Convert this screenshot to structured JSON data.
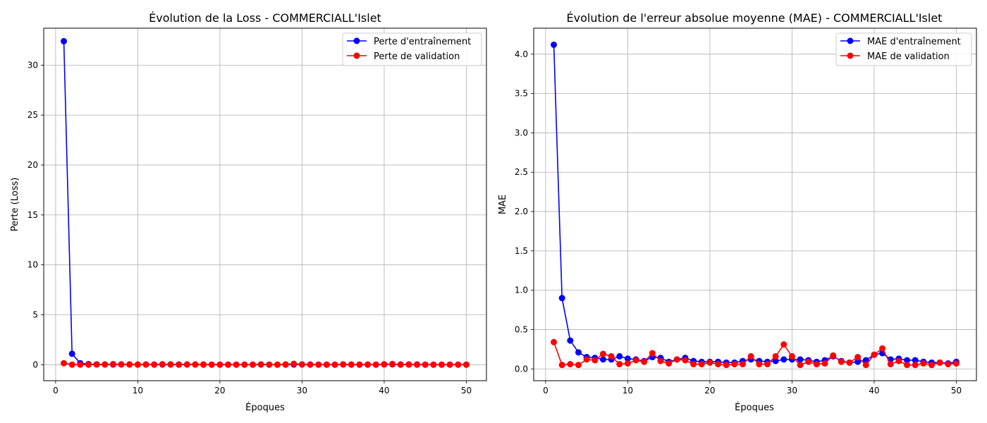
{
  "chart_data": [
    {
      "type": "line",
      "title": "Évolution de la Loss - COMMERCIALL'Islet",
      "xlabel": "Époques",
      "ylabel": "Perte (Loss)",
      "xlim": [
        -1.45,
        52.45
      ],
      "ylim": [
        -1.6,
        33.7
      ],
      "xticks": [
        0,
        10,
        20,
        30,
        40,
        50
      ],
      "yticks": [
        0,
        5,
        10,
        15,
        20,
        25,
        30
      ],
      "grid": true,
      "legend": "upper right",
      "x": [
        1,
        2,
        3,
        4,
        5,
        6,
        7,
        8,
        9,
        10,
        11,
        12,
        13,
        14,
        15,
        16,
        17,
        18,
        19,
        20,
        21,
        22,
        23,
        24,
        25,
        26,
        27,
        28,
        29,
        30,
        31,
        32,
        33,
        34,
        35,
        36,
        37,
        38,
        39,
        40,
        41,
        42,
        43,
        44,
        45,
        46,
        47,
        48,
        49,
        50
      ],
      "series": [
        {
          "name": "Perte d'entraînement",
          "color": "#0000ff",
          "values": [
            32.4,
            1.1,
            0.15,
            0.06,
            0.04,
            0.03,
            0.02,
            0.03,
            0.03,
            0.02,
            0.02,
            0.02,
            0.02,
            0.03,
            0.02,
            0.02,
            0.02,
            0.02,
            0.01,
            0.01,
            0.01,
            0.01,
            0.01,
            0.01,
            0.02,
            0.01,
            0.01,
            0.01,
            0.02,
            0.02,
            0.02,
            0.01,
            0.01,
            0.01,
            0.03,
            0.02,
            0.01,
            0.01,
            0.01,
            0.04,
            0.04,
            0.02,
            0.02,
            0.02,
            0.01,
            0.01,
            0.01,
            0.01,
            0.01,
            0.01
          ]
        },
        {
          "name": "Perte de validation",
          "color": "#ff0000",
          "values": [
            0.15,
            0.01,
            0.01,
            0.01,
            0.02,
            0.02,
            0.06,
            0.03,
            0.02,
            0.01,
            0.02,
            0.01,
            0.05,
            0.02,
            0.01,
            0.02,
            0.02,
            0.01,
            0.01,
            0.01,
            0.01,
            0.01,
            0.01,
            0.01,
            0.03,
            0.01,
            0.01,
            0.03,
            0.09,
            0.03,
            0.01,
            0.01,
            0.01,
            0.01,
            0.03,
            0.01,
            0.01,
            0.02,
            0.01,
            0.03,
            0.07,
            0.01,
            0.02,
            0.01,
            0.01,
            0.01,
            0.01,
            0.01,
            0.01,
            0.01
          ]
        }
      ]
    },
    {
      "type": "line",
      "title": "Évolution de l'erreur absolue moyenne (MAE) - COMMERCIALL'Islet",
      "xlabel": "Époques",
      "ylabel": "MAE",
      "xlim": [
        -1.45,
        52.45
      ],
      "ylim": [
        -0.15,
        4.33
      ],
      "xticks": [
        0,
        10,
        20,
        30,
        40,
        50
      ],
      "yticks": [
        0.0,
        0.5,
        1.0,
        1.5,
        2.0,
        2.5,
        3.0,
        3.5,
        4.0
      ],
      "ytick_labels": [
        "0.0",
        "0.5",
        "1.0",
        "1.5",
        "2.0",
        "2.5",
        "3.0",
        "3.5",
        "4.0"
      ],
      "grid": true,
      "legend": "upper right",
      "x": [
        1,
        2,
        3,
        4,
        5,
        6,
        7,
        8,
        9,
        10,
        11,
        12,
        13,
        14,
        15,
        16,
        17,
        18,
        19,
        20,
        21,
        22,
        23,
        24,
        25,
        26,
        27,
        28,
        29,
        30,
        31,
        32,
        33,
        34,
        35,
        36,
        37,
        38,
        39,
        40,
        41,
        42,
        43,
        44,
        45,
        46,
        47,
        48,
        49,
        50
      ],
      "series": [
        {
          "name": "MAE d'entraînement",
          "color": "#0000ff",
          "values": [
            4.12,
            0.9,
            0.36,
            0.21,
            0.15,
            0.14,
            0.12,
            0.12,
            0.16,
            0.13,
            0.12,
            0.1,
            0.15,
            0.14,
            0.09,
            0.12,
            0.14,
            0.1,
            0.09,
            0.09,
            0.09,
            0.08,
            0.08,
            0.1,
            0.12,
            0.1,
            0.09,
            0.1,
            0.12,
            0.12,
            0.12,
            0.11,
            0.09,
            0.11,
            0.16,
            0.1,
            0.08,
            0.09,
            0.11,
            0.18,
            0.2,
            0.12,
            0.13,
            0.11,
            0.11,
            0.09,
            0.08,
            0.08,
            0.07,
            0.09
          ]
        },
        {
          "name": "MAE de validation",
          "color": "#ff0000",
          "values": [
            0.34,
            0.05,
            0.06,
            0.05,
            0.12,
            0.11,
            0.19,
            0.16,
            0.06,
            0.07,
            0.11,
            0.09,
            0.2,
            0.1,
            0.07,
            0.12,
            0.11,
            0.06,
            0.06,
            0.08,
            0.06,
            0.05,
            0.06,
            0.06,
            0.16,
            0.06,
            0.06,
            0.16,
            0.31,
            0.16,
            0.05,
            0.09,
            0.06,
            0.07,
            0.17,
            0.09,
            0.08,
            0.15,
            0.05,
            0.18,
            0.26,
            0.06,
            0.1,
            0.05,
            0.05,
            0.07,
            0.05,
            0.08,
            0.06,
            0.07
          ]
        }
      ]
    }
  ]
}
